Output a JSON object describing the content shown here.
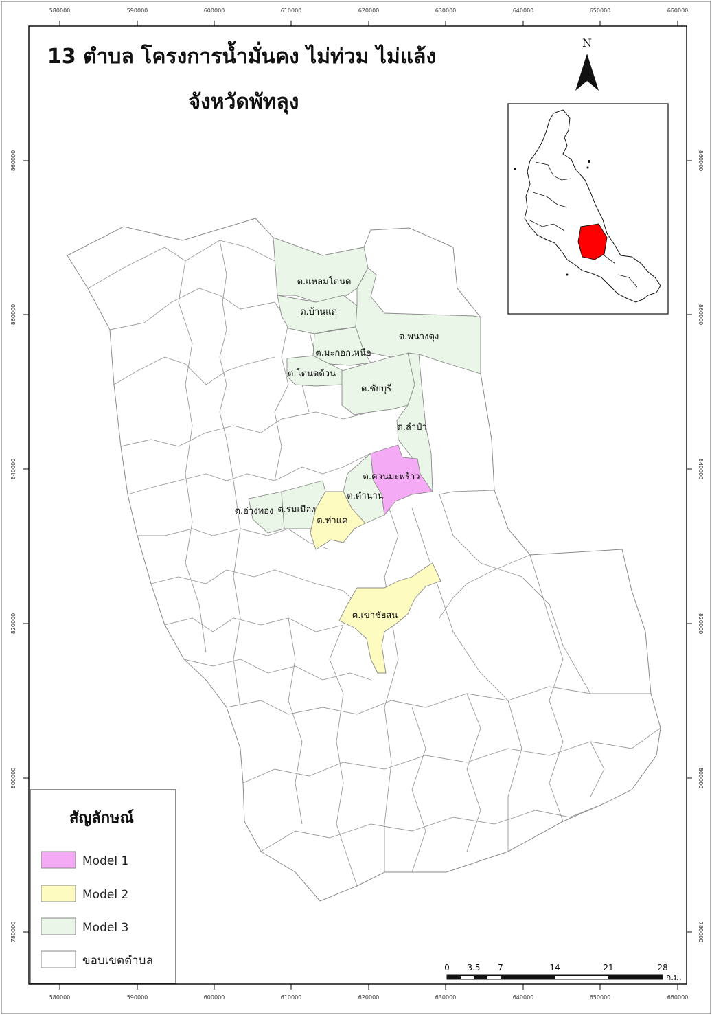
{
  "title": {
    "line1": "13 ตำบล โครงการน้ำมั่นคง ไม่ท่วม ไม่แล้ง",
    "line2": "จังหวัดพัทลุง"
  },
  "north_arrow": {
    "label": "N"
  },
  "grid": {
    "x_ticks": [
      "580000",
      "590000",
      "600000",
      "610000",
      "620000",
      "630000",
      "640000",
      "650000",
      "660000"
    ],
    "y_ticks": [
      "860000",
      "860000",
      "840000",
      "820000",
      "800000",
      "780000"
    ]
  },
  "districts": [
    {
      "name": "ต.แหลมโตนด",
      "model": "Model 3"
    },
    {
      "name": "ต.บ้านแต",
      "model": "Model 3"
    },
    {
      "name": "ต.พนางตุง",
      "model": "Model 3"
    },
    {
      "name": "ต.มะกอกเหนือ",
      "model": "Model 3"
    },
    {
      "name": "ต.โตนดด้วน",
      "model": "Model 3"
    },
    {
      "name": "ต.ชัยบุรี",
      "model": "Model 3"
    },
    {
      "name": "ต.ลำปำ",
      "model": "Model 3"
    },
    {
      "name": "ต.ควนมะพร้าว",
      "model": "Model 1"
    },
    {
      "name": "ต.ตำนาน",
      "model": "Model 3"
    },
    {
      "name": "ต.อ่างทอง",
      "model": "Model 3"
    },
    {
      "name": "ต.ร่มเมือง",
      "model": "Model 3"
    },
    {
      "name": "ต.ท่าแค",
      "model": "Model 2"
    },
    {
      "name": "ต.เขาชัยสน",
      "model": "Model 2"
    }
  ],
  "legend": {
    "title": "สัญลักษณ์",
    "items": [
      {
        "label": "Model 1",
        "color": "#f4aaf4"
      },
      {
        "label": "Model 2",
        "color": "#fdfbbf"
      },
      {
        "label": "Model 3",
        "color": "#eaf6e8"
      },
      {
        "label": "ขอบเขตตำบล",
        "color": "#ffffff"
      }
    ]
  },
  "scale_bar": {
    "labels": [
      "0",
      "3.5",
      "7",
      "14",
      "21",
      "28"
    ],
    "unit": "ก.ม."
  },
  "colors": {
    "model1": "#f4aaf4",
    "model2": "#fdfbbf",
    "model3": "#eaf6e8",
    "boundary": "#8a8a8a",
    "inset_highlight": "#ff0000"
  }
}
